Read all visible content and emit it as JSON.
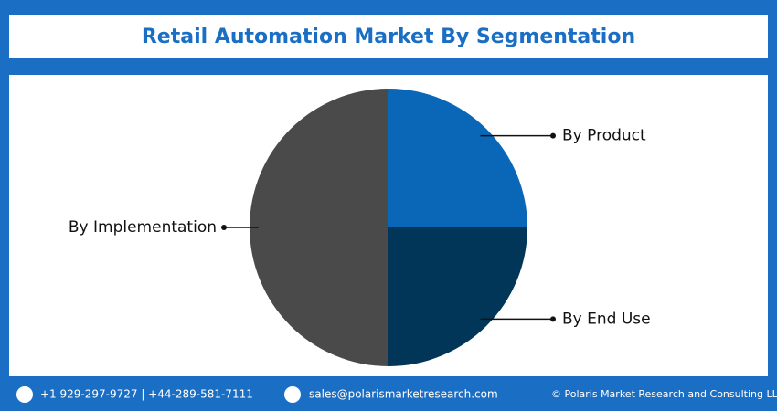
{
  "chart_data": {
    "type": "pie",
    "title": "Retail Automation Market By Segmentation",
    "categories": [
      "By Product",
      "By End Use",
      "By Implementation"
    ],
    "values": [
      25,
      25,
      50
    ],
    "colors": [
      "#0a67b8",
      "#013658",
      "#4a4a4a"
    ]
  },
  "footer": {
    "phone": "+1 929-297-9727 | +44-289-581-7111",
    "email": "sales@polarismarketresearch.com",
    "copyright": "© Polaris Market Research and Consulting LLP"
  }
}
